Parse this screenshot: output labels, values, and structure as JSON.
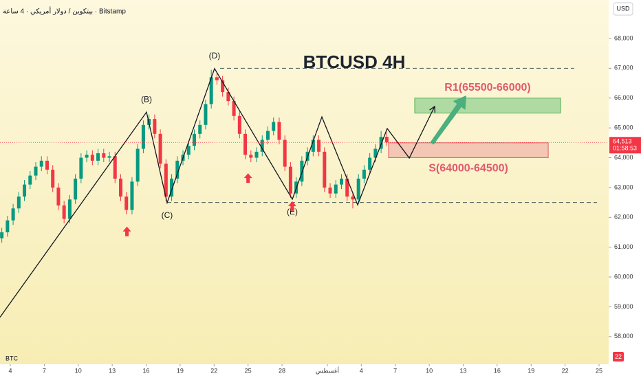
{
  "chart_data": {
    "type": "candlestick",
    "title": "BTCUSD 4H",
    "subtitle": "بيتكوين / دولار أمريكي · 4 ساعة · Bitstamp",
    "currency": "USD",
    "volume_label": "BTC",
    "corner_badge": "22",
    "up_color": "#089981",
    "down_color": "#f23645",
    "xlim": [
      3.09,
      56.85
    ],
    "ylim": [
      57420,
      69290
    ],
    "xticks": [
      4,
      7,
      10,
      13,
      16,
      19,
      22,
      25,
      28,
      {
        "value": 32,
        "label": "أغسطس"
      },
      {
        "value": 35,
        "label": "4"
      },
      {
        "value": 38,
        "label": "7"
      },
      {
        "value": 41,
        "label": "10"
      },
      {
        "value": 44,
        "label": "13"
      },
      {
        "value": 47,
        "label": "16"
      },
      {
        "value": 50,
        "label": "19"
      },
      {
        "value": 53,
        "label": "22"
      },
      {
        "value": 56,
        "label": "25"
      }
    ],
    "yticks": [
      {
        "value": 58000,
        "label": "58,000"
      },
      {
        "value": 59000,
        "label": "59,000"
      },
      {
        "value": 60000,
        "label": "60,000"
      },
      {
        "value": 61000,
        "label": "61,000"
      },
      {
        "value": 62000,
        "label": "62,000"
      },
      {
        "value": 63000,
        "label": "63,000"
      },
      {
        "value": 64000,
        "label": "64,000"
      },
      {
        "value": 65000,
        "label": "65,000"
      },
      {
        "value": 66000,
        "label": "66,000"
      },
      {
        "value": 67000,
        "label": "67,000"
      },
      {
        "value": 68000,
        "label": "68,000"
      }
    ],
    "last_price": {
      "value": 64513,
      "label": "64,513"
    },
    "countdown": "01:58:53",
    "x": [
      3.25,
      3.75,
      4.25,
      4.75,
      5.25,
      5.75,
      6.25,
      6.75,
      7.25,
      7.75,
      8.25,
      8.75,
      9.25,
      9.75,
      10.25,
      10.75,
      11.25,
      11.75,
      12.25,
      12.75,
      13.25,
      13.75,
      14.25,
      14.75,
      15.25,
      15.75,
      16.25,
      16.75,
      17.25,
      17.75,
      18.25,
      18.75,
      19.25,
      19.75,
      20.25,
      20.75,
      21.25,
      21.75,
      22.25,
      22.75,
      23.25,
      23.75,
      24.25,
      24.75,
      25.25,
      25.75,
      26.25,
      26.75,
      27.25,
      27.75,
      28.25,
      28.75,
      29.25,
      29.75,
      30.25,
      30.75,
      31.25,
      31.75,
      32.25,
      32.75,
      33.25,
      33.75,
      34.25,
      34.75,
      35.25,
      35.75,
      36.25,
      36.75,
      37.25
    ],
    "open": [
      61300,
      61500,
      61900,
      62300,
      62700,
      63100,
      63400,
      63700,
      63900,
      63600,
      63000,
      62400,
      61950,
      62600,
      63300,
      64000,
      64100,
      63900,
      64150,
      64000,
      64050,
      63300,
      62700,
      62250,
      63200,
      64300,
      65100,
      65300,
      64800,
      63800,
      62700,
      63300,
      63900,
      64100,
      64400,
      64800,
      65100,
      65800,
      66700,
      66600,
      66200,
      65900,
      65400,
      64800,
      64100,
      64000,
      64200,
      64600,
      64900,
      65200,
      64600,
      63700,
      62800,
      63200,
      63900,
      64200,
      64600,
      64200,
      63000,
      62800,
      63100,
      63300,
      62700,
      62600,
      63300,
      63600,
      64000,
      64300,
      64700
    ],
    "high": [
      61650,
      62050,
      62450,
      62850,
      63250,
      63550,
      63850,
      64050,
      64050,
      63750,
      63150,
      62550,
      62750,
      63450,
      64150,
      64250,
      64250,
      64300,
      64300,
      64200,
      64200,
      63450,
      62850,
      63350,
      64450,
      65250,
      65450,
      65450,
      64950,
      63950,
      63450,
      64050,
      64250,
      64550,
      64950,
      65250,
      65950,
      66950,
      66850,
      66750,
      66350,
      66050,
      65550,
      64950,
      64250,
      64350,
      64750,
      65050,
      65350,
      65350,
      64750,
      63850,
      63350,
      64050,
      64350,
      64750,
      64750,
      64350,
      63150,
      63250,
      63450,
      63450,
      62850,
      63450,
      63750,
      64150,
      64450,
      64900,
      64850
    ],
    "low": [
      61150,
      61350,
      61750,
      62150,
      62550,
      62950,
      63250,
      63550,
      63450,
      62850,
      62250,
      61800,
      61800,
      62450,
      63150,
      63850,
      63750,
      63750,
      63850,
      63850,
      63150,
      62550,
      62100,
      62100,
      63050,
      64150,
      64950,
      64650,
      63650,
      62550,
      62550,
      63150,
      63750,
      63950,
      64250,
      64650,
      64950,
      65650,
      66450,
      66050,
      65750,
      65250,
      64650,
      63950,
      63850,
      63850,
      64050,
      64450,
      64750,
      64450,
      63550,
      62650,
      62650,
      63050,
      63750,
      64050,
      64050,
      62850,
      62650,
      62650,
      62950,
      62550,
      62300,
      62450,
      63150,
      63450,
      63850,
      64150,
      64400
    ],
    "close": [
      61500,
      61900,
      62300,
      62700,
      63100,
      63400,
      63700,
      63900,
      63600,
      63000,
      62400,
      61950,
      62600,
      63300,
      64000,
      64100,
      63900,
      64150,
      64000,
      64050,
      63300,
      62700,
      62250,
      63200,
      64300,
      65100,
      65300,
      64800,
      63800,
      62700,
      63300,
      63900,
      64100,
      64400,
      64800,
      65100,
      65800,
      66700,
      66600,
      66200,
      65900,
      65400,
      64800,
      64100,
      64000,
      64200,
      64600,
      64900,
      65200,
      64600,
      63700,
      62800,
      63200,
      63900,
      64200,
      64600,
      64200,
      63000,
      62800,
      63100,
      63300,
      62700,
      62600,
      63300,
      63600,
      64000,
      64300,
      64700,
      64513
    ],
    "pattern": {
      "color": "#131722",
      "x": [
        3.09,
        16.03,
        17.85,
        22.04,
        28.91,
        31.52,
        34.68,
        37.29,
        39.24,
        41.48
      ],
      "y": [
        58650,
        65530,
        62490,
        66990,
        62610,
        65370,
        62420,
        64980,
        63990,
        65720
      ]
    },
    "wave_labels": [
      "(B)",
      "(C)",
      "(D)",
      "(E)"
    ],
    "levels": [
      {
        "value": 67000,
        "x": [
          22.53,
          53.8
        ]
      },
      {
        "value": 62500,
        "x": [
          17.85,
          55.82
        ]
      }
    ],
    "zones": [
      {
        "label": "R1(65500-66000)",
        "low": 65500,
        "high": 66000,
        "x": [
          39.72,
          52.6
        ],
        "fill": "#8fcf8f",
        "stroke": "#4caf50",
        "text_color": "#e05a6e"
      },
      {
        "label": "S(64000-64500)",
        "low": 64000,
        "high": 64500,
        "x": [
          37.41,
          51.51
        ],
        "fill": "#f0b4aa",
        "stroke": "#e05a6e",
        "text_color": "#e05a6e"
      }
    ],
    "trend_arrow": {
      "color": "#4caf7d",
      "x": [
        41.24,
        44.28
      ],
      "y": [
        64480,
        66090
      ]
    },
    "signal_arrows": {
      "color": "#f23645",
      "x": [
        14.3,
        25.0,
        28.9
      ],
      "y": [
        61690,
        63480,
        62540
      ]
    }
  }
}
